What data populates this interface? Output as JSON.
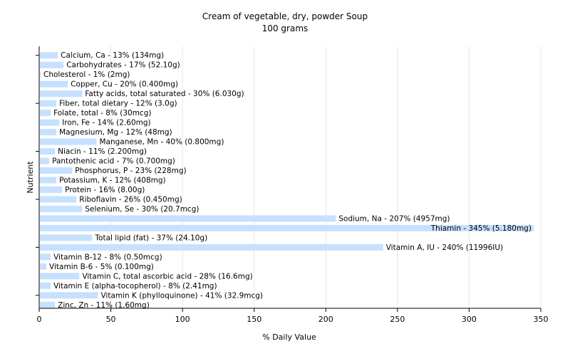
{
  "chart_data": {
    "type": "bar",
    "orientation": "horizontal",
    "title": "Cream of vegetable, dry, powder Soup",
    "subtitle": "100 grams",
    "xlabel": "% Daily Value",
    "ylabel": "Nutrient",
    "xlim": [
      0,
      350
    ],
    "xticks": [
      "0",
      "50",
      "100",
      "150",
      "200",
      "250",
      "300",
      "350"
    ],
    "grid": true,
    "bar_color": "#c6e0ff",
    "categories": [
      "Calcium, Ca",
      "Carbohydrates",
      "Cholesterol",
      "Copper, Cu",
      "Fatty acids, total saturated",
      "Fiber, total dietary",
      "Folate, total",
      "Iron, Fe",
      "Magnesium, Mg",
      "Manganese, Mn",
      "Niacin",
      "Pantothenic acid",
      "Phosphorus, P",
      "Potassium, K",
      "Protein",
      "Riboflavin",
      "Selenium, Se",
      "Sodium, Na",
      "Thiamin",
      "Total lipid (fat)",
      "Vitamin A, IU",
      "Vitamin B-12",
      "Vitamin B-6",
      "Vitamin C, total ascorbic acid",
      "Vitamin E (alpha-tocopherol)",
      "Vitamin K (phylloquinone)",
      "Zinc, Zn"
    ],
    "values": [
      13,
      17,
      1,
      20,
      30,
      12,
      8,
      14,
      12,
      40,
      11,
      7,
      23,
      12,
      16,
      26,
      30,
      207,
      345,
      37,
      240,
      8,
      5,
      28,
      8,
      41,
      11
    ],
    "labels": [
      "Calcium, Ca - 13% (134mg)",
      "Carbohydrates - 17% (52.10g)",
      "Cholesterol - 1% (2mg)",
      "Copper, Cu - 20% (0.400mg)",
      "Fatty acids, total saturated - 30% (6.030g)",
      "Fiber, total dietary - 12% (3.0g)",
      "Folate, total - 8% (30mcg)",
      "Iron, Fe - 14% (2.60mg)",
      "Magnesium, Mg - 12% (48mg)",
      "Manganese, Mn - 40% (0.800mg)",
      "Niacin - 11% (2.200mg)",
      "Pantothenic acid - 7% (0.700mg)",
      "Phosphorus, P - 23% (228mg)",
      "Potassium, K - 12% (408mg)",
      "Protein - 16% (8.00g)",
      "Riboflavin - 26% (0.450mg)",
      "Selenium, Se - 30% (20.7mcg)",
      "Sodium, Na - 207% (4957mg)",
      "Thiamin - 345% (5.180mg)",
      "Total lipid (fat) - 37% (24.10g)",
      "Vitamin A, IU - 240% (11996IU)",
      "Vitamin B-12 - 8% (0.50mcg)",
      "Vitamin B-6 - 5% (0.100mg)",
      "Vitamin C, total ascorbic acid - 28% (16.6mg)",
      "Vitamin E (alpha-tocopherol) - 8% (2.41mg)",
      "Vitamin K (phylloquinone) - 41% (32.9mcg)",
      "Zinc, Zn - 11% (1.60mg)"
    ]
  }
}
